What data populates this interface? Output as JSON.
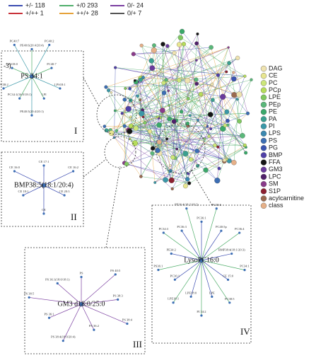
{
  "edge_legend": [
    {
      "label": "+/- 118",
      "color": "#3a4bb0"
    },
    {
      "label": "+/0 293",
      "color": "#4fae6a"
    },
    {
      "label": "0/- 24",
      "color": "#7a3ea0"
    },
    {
      "label": "+/++ 1",
      "color": "#c8323a"
    },
    {
      "label": "++/+ 28",
      "color": "#e6a23a"
    },
    {
      "label": "0/+ 7",
      "color": "#555555"
    }
  ],
  "node_legend": [
    {
      "label": "DAG",
      "color": "#efe3b0"
    },
    {
      "label": "CE",
      "color": "#e8e690"
    },
    {
      "label": "PC",
      "color": "#cce67a"
    },
    {
      "label": "PCp",
      "color": "#b6dc5a"
    },
    {
      "label": "LPE",
      "color": "#80c860"
    },
    {
      "label": "PEp",
      "color": "#5ab87a"
    },
    {
      "label": "PE",
      "color": "#3aa86a"
    },
    {
      "label": "PA",
      "color": "#3aa090"
    },
    {
      "label": "PI",
      "color": "#3a98a8"
    },
    {
      "label": "LPS",
      "color": "#3a88b0"
    },
    {
      "label": "PS",
      "color": "#3c6eb4"
    },
    {
      "label": "PG",
      "color": "#3a54b0"
    },
    {
      "label": "BMP",
      "color": "#5040a8"
    },
    {
      "label": "FFA",
      "color": "#151515"
    },
    {
      "label": "GM3",
      "color": "#6a3a9c"
    },
    {
      "label": "LPC",
      "color": "#50206a"
    },
    {
      "label": "SM",
      "color": "#8a3a8a"
    },
    {
      "label": "S1P",
      "color": "#8c2030"
    },
    {
      "label": "acylcarnitine",
      "color": "#9a6a50"
    },
    {
      "label": "class",
      "color": "#e6b088"
    }
  ],
  "panels": [
    {
      "label": "I",
      "center": "PS 34:1",
      "corner": "-3)",
      "leaves": [
        "PE40:6(20:4/20:4)",
        "PC40:2",
        "PC40:7",
        "LPS18:1",
        "LPI",
        "PE40:5(20:4/20:1)",
        "PC34:1(16:0/18:1)",
        "PC38:2",
        "LPS18:0",
        "PC40:7"
      ]
    },
    {
      "label": "II",
      "center": "BMP38:5(18:1/20:4)",
      "leaves": [
        "CE 17:1",
        "CE 16:2",
        "CE 20:3",
        "CE",
        "CE 18:1",
        "CE 16:0"
      ]
    },
    {
      "label": "III",
      "center": "GM3 d18:0/25:0",
      "leaves": [
        "PS",
        "PS 40:5",
        "PS 38:3",
        "PS 38:4",
        "PS 36:2",
        "PS 38:4(18:0/20:4)",
        "PS 36:1",
        "PS 38:5",
        "PS 36:1(18:0/18:1)"
      ]
    },
    {
      "label": "IV",
      "center": "LysoPC16:0",
      "leaves": [
        "PC36:1",
        "PC38:6",
        "PC40:5p",
        "PC36:4",
        "BMP38:4(18:1/20:3)",
        "PC34:1",
        "CE 15:0",
        "PC38:5",
        "LPE",
        "PI 34:2",
        "LPE18:0",
        "LPE18:1",
        "PC36:1",
        "PS36:1",
        "PE34:2",
        "PC34:3",
        "PC36:3",
        "PE36:4(18:2/18:2)"
      ]
    }
  ]
}
